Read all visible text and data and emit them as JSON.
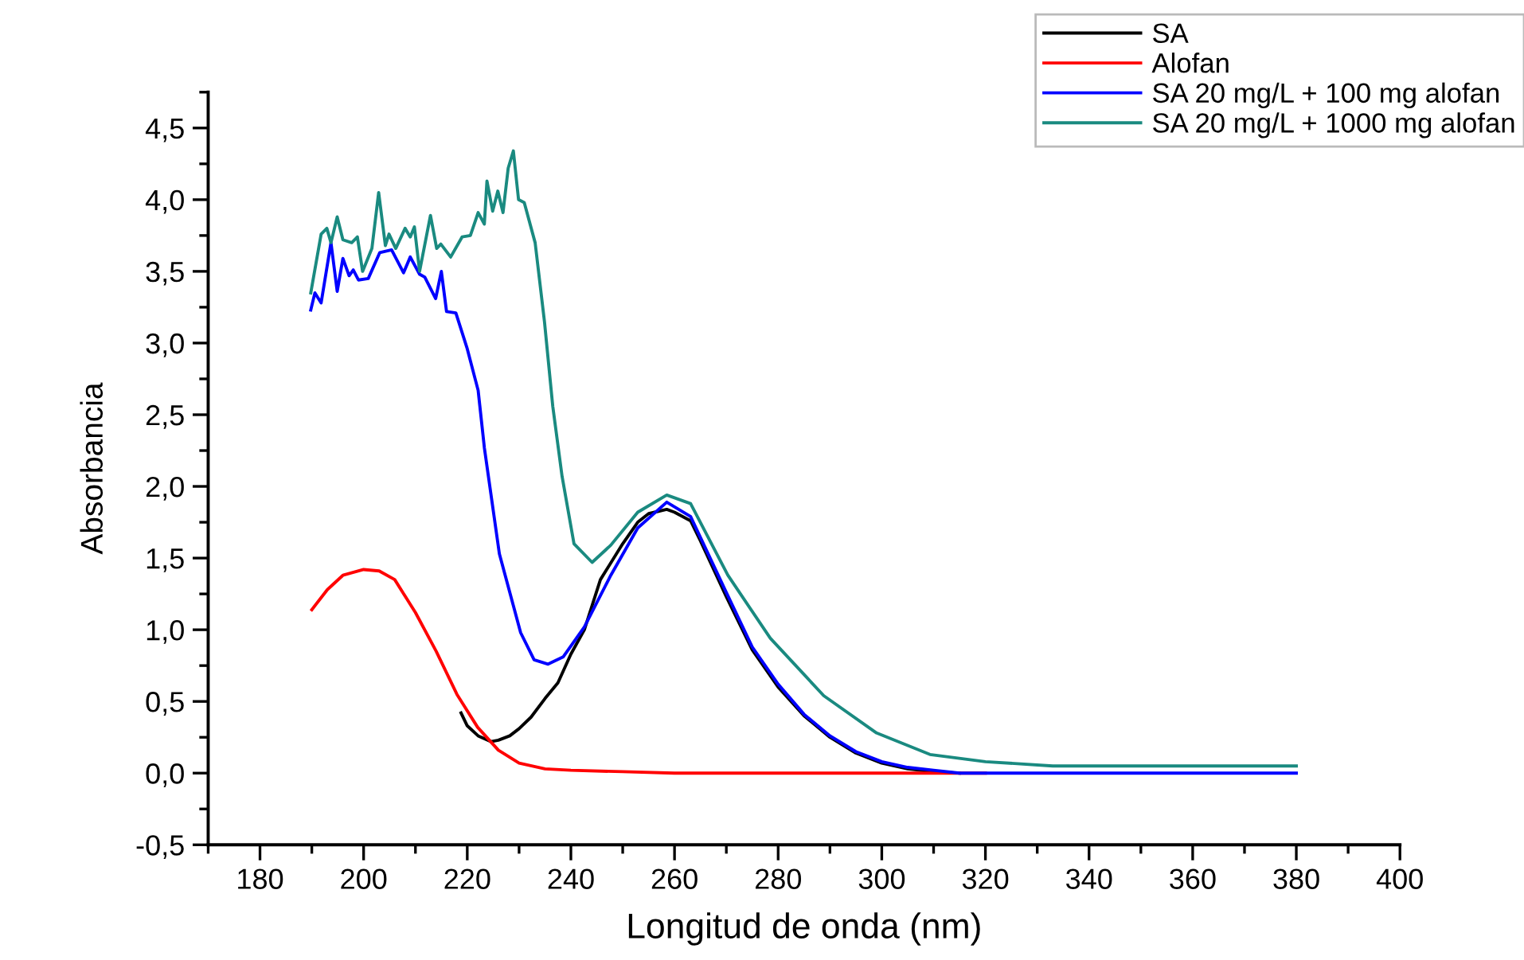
{
  "chart_data": {
    "type": "line",
    "xlabel": "Longitud de onda (nm)",
    "ylabel": "Absorbancia",
    "xlim": [
      170,
      400
    ],
    "xticks": [
      180,
      200,
      220,
      240,
      260,
      280,
      300,
      320,
      340,
      360,
      380,
      400
    ],
    "ylim": [
      -0.5,
      4.75
    ],
    "yticks": [
      {
        "value": -0.5,
        "label": "-0,5"
      },
      {
        "value": 0,
        "label": "0,0"
      },
      {
        "value": 0.5,
        "label": "0,5"
      },
      {
        "value": 1,
        "label": "1,0"
      },
      {
        "value": 1.5,
        "label": "1,5"
      },
      {
        "value": 2,
        "label": "2,0"
      },
      {
        "value": 2.5,
        "label": "2,5"
      },
      {
        "value": 3,
        "label": "3,0"
      },
      {
        "value": 3.5,
        "label": "3,5"
      },
      {
        "value": 4,
        "label": "4,0"
      },
      {
        "value": 4.5,
        "label": "4,5"
      }
    ],
    "grid": false,
    "legend": "top right",
    "marker": "none",
    "line_style": "solid",
    "series": [
      {
        "name": "SA",
        "color": "#000000",
        "x": [
          218.8,
          220,
          222.1,
          224.6,
          226,
          228.2,
          230,
          232.3,
          235,
          237.5,
          240,
          242.6,
          245.7,
          250,
          252.9,
          255,
          258.5,
          260,
          263.1,
          265,
          270,
          275,
          280,
          285,
          290,
          295,
          300,
          305,
          310,
          315
        ],
        "values": [
          0.42,
          0.33,
          0.26,
          0.22,
          0.23,
          0.26,
          0.31,
          0.39,
          0.52,
          0.63,
          0.83,
          1.0,
          1.35,
          1.6,
          1.75,
          1.81,
          1.84,
          1.82,
          1.76,
          1.62,
          1.23,
          0.86,
          0.6,
          0.4,
          0.25,
          0.14,
          0.07,
          0.03,
          0.01,
          0.0
        ]
      },
      {
        "name": "Alofan",
        "color": "#ff0000",
        "x": [
          190,
          193,
          196,
          200,
          203,
          206,
          210,
          214,
          218,
          222,
          226,
          230,
          235,
          240,
          250,
          260,
          280,
          300,
          320
        ],
        "values": [
          1.14,
          1.28,
          1.38,
          1.42,
          1.41,
          1.35,
          1.12,
          0.85,
          0.55,
          0.32,
          0.16,
          0.07,
          0.03,
          0.02,
          0.01,
          0.0,
          0.0,
          0.0,
          0.0
        ]
      },
      {
        "name": "SA 20 mg/L + 100 mg alofan",
        "color": "#0000ff",
        "x": [
          189.8,
          190.6,
          191.8,
          193.7,
          194.9,
          196.0,
          197.2,
          198.0,
          199.0,
          200.9,
          203.1,
          205.4,
          207.7,
          209.0,
          210.8,
          211.8,
          213.9,
          215.0,
          216.0,
          217.8,
          220.0,
          222.1,
          223.3,
          226.2,
          230.3,
          232.9,
          235.6,
          238.5,
          242.6,
          247.7,
          252.9,
          258.5,
          263.1,
          270,
          275,
          280,
          285,
          290,
          295,
          300,
          305,
          310,
          315,
          320,
          340,
          360,
          380
        ],
        "values": [
          3.23,
          3.35,
          3.28,
          3.7,
          3.36,
          3.59,
          3.47,
          3.51,
          3.44,
          3.45,
          3.63,
          3.65,
          3.49,
          3.6,
          3.48,
          3.46,
          3.31,
          3.5,
          3.22,
          3.21,
          2.96,
          2.67,
          2.27,
          1.53,
          0.98,
          0.79,
          0.76,
          0.81,
          1.02,
          1.38,
          1.71,
          1.89,
          1.79,
          1.26,
          0.88,
          0.62,
          0.41,
          0.26,
          0.15,
          0.08,
          0.04,
          0.02,
          0.0,
          0.0,
          0.0,
          0.0,
          0.0
        ]
      },
      {
        "name": "SA 20 mg/L + 1000 mg alofan",
        "color": "#1a8a80",
        "x": [
          189.8,
          191.8,
          192.9,
          193.7,
          194.9,
          196.0,
          197.7,
          198.8,
          199.8,
          201.6,
          202.9,
          204.2,
          204.9,
          206.2,
          208.0,
          209.0,
          209.8,
          210.8,
          212.9,
          214.1,
          214.9,
          216.8,
          219.0,
          220.6,
          222.1,
          223.3,
          223.8,
          224.9,
          225.9,
          226.9,
          227.9,
          228.9,
          229.9,
          231.0,
          233.1,
          234.9,
          236.5,
          238.3,
          240.6,
          244.1,
          247.7,
          252.9,
          258.5,
          263.1,
          270.3,
          278.5,
          288.8,
          299.0,
          309.3,
          320,
          333,
          350,
          380
        ],
        "values": [
          3.35,
          3.76,
          3.8,
          3.7,
          3.88,
          3.72,
          3.7,
          3.74,
          3.5,
          3.66,
          4.05,
          3.68,
          3.76,
          3.66,
          3.8,
          3.74,
          3.81,
          3.5,
          3.89,
          3.66,
          3.69,
          3.6,
          3.74,
          3.75,
          3.91,
          3.83,
          4.13,
          3.92,
          4.06,
          3.91,
          4.22,
          4.34,
          4.0,
          3.98,
          3.7,
          3.15,
          2.56,
          2.07,
          1.6,
          1.47,
          1.59,
          1.82,
          1.94,
          1.88,
          1.38,
          0.94,
          0.54,
          0.28,
          0.13,
          0.08,
          0.05,
          0.05,
          0.05
        ]
      }
    ]
  }
}
